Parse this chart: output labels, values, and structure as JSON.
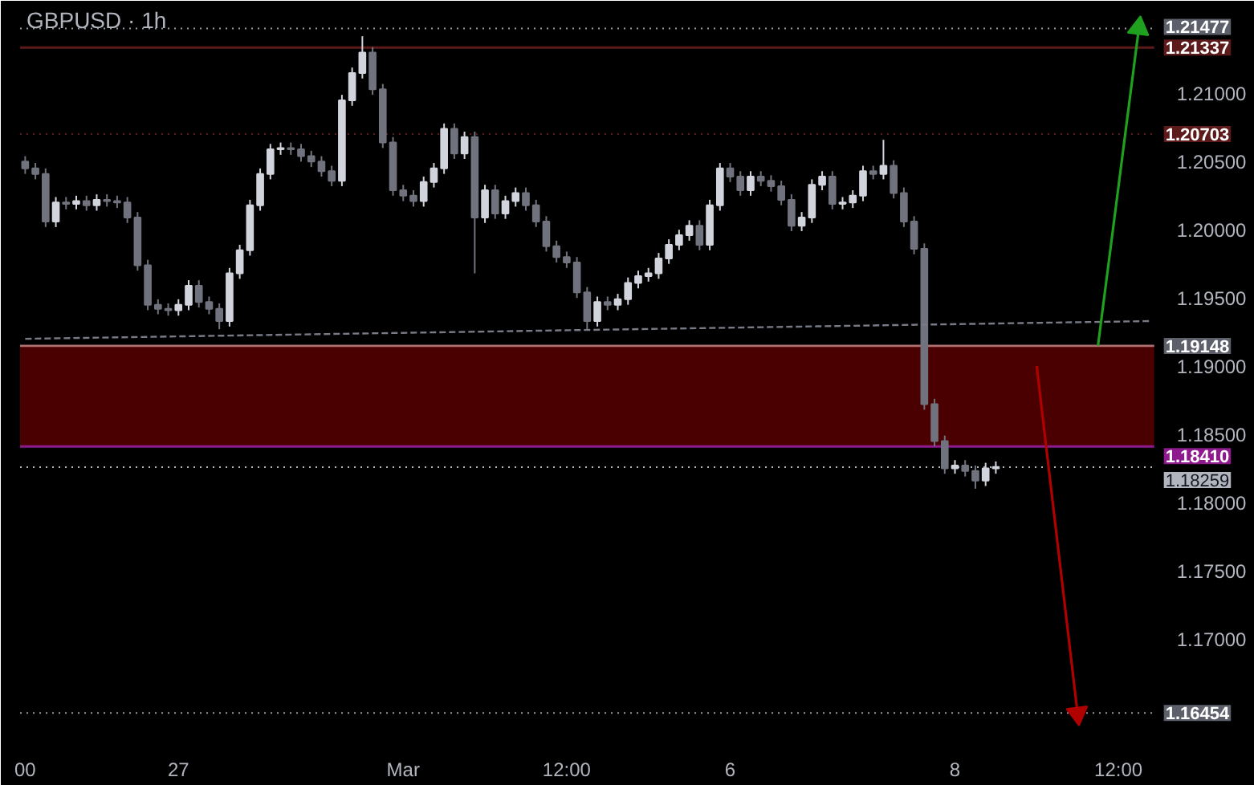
{
  "chart_data": {
    "type": "candlestick",
    "title": "GBPUSD · 1h",
    "categories": [
      "00",
      null,
      null,
      null,
      null,
      null,
      null,
      null,
      null,
      null,
      null,
      null,
      null,
      null,
      null,
      "27",
      null,
      null,
      null,
      null,
      null,
      null,
      null,
      null,
      null,
      null,
      null,
      null,
      null,
      null,
      null,
      null,
      null,
      null,
      null,
      null,
      null,
      "Mar",
      null,
      null,
      null,
      null,
      null,
      null,
      null,
      null,
      null,
      null,
      null,
      null,
      null,
      null,
      null,
      "12:00",
      null,
      null,
      null,
      null,
      null,
      null,
      null,
      null,
      null,
      null,
      null,
      null,
      null,
      null,
      null,
      "6",
      null,
      null,
      null,
      null,
      null,
      null,
      null,
      null,
      null,
      null,
      null,
      null,
      null,
      null,
      null,
      null,
      null,
      null,
      null,
      null,
      null,
      "8",
      null,
      null,
      null,
      null,
      null,
      null,
      null,
      null,
      null,
      null,
      null,
      null,
      null,
      null,
      null,
      "12:00",
      null,
      null,
      null
    ],
    "ohlc": [
      [
        1.205,
        1.2054,
        1.2041,
        1.2045
      ],
      [
        1.2045,
        1.2049,
        1.2037,
        1.2041
      ],
      [
        1.2041,
        1.2045,
        1.2002,
        1.2006
      ],
      [
        1.2006,
        1.2024,
        1.2002,
        1.202
      ],
      [
        1.202,
        1.2024,
        1.2015,
        1.2019
      ],
      [
        1.2019,
        1.2025,
        1.2015,
        1.2021
      ],
      [
        1.2021,
        1.2025,
        1.2014,
        1.2018
      ],
      [
        1.2018,
        1.2026,
        1.2014,
        1.2022
      ],
      [
        1.2022,
        1.2026,
        1.2017,
        1.2021
      ],
      [
        1.2021,
        1.2025,
        1.2016,
        1.202
      ],
      [
        1.202,
        1.2024,
        1.2005,
        1.2009
      ],
      [
        1.2009,
        1.2013,
        1.197,
        1.1974
      ],
      [
        1.1974,
        1.1978,
        1.1941,
        1.1945
      ],
      [
        1.1945,
        1.1949,
        1.1938,
        1.1942
      ],
      [
        1.1942,
        1.1946,
        1.1937,
        1.1941
      ],
      [
        1.1941,
        1.1949,
        1.1937,
        1.1945
      ],
      [
        1.1945,
        1.1963,
        1.1941,
        1.1959
      ],
      [
        1.1959,
        1.1963,
        1.1943,
        1.1947
      ],
      [
        1.1947,
        1.1951,
        1.1938,
        1.1942
      ],
      [
        1.1942,
        1.1946,
        1.1927,
        1.1933
      ],
      [
        1.1933,
        1.1972,
        1.1929,
        1.1968
      ],
      [
        1.1968,
        1.1989,
        1.1964,
        1.1985
      ],
      [
        1.1985,
        1.2022,
        1.1981,
        1.2018
      ],
      [
        1.2018,
        1.2045,
        1.2014,
        1.2041
      ],
      [
        1.2041,
        1.2063,
        1.2037,
        1.2059
      ],
      [
        1.2059,
        1.2064,
        1.2055,
        1.206
      ],
      [
        1.206,
        1.2064,
        1.2055,
        1.2059
      ],
      [
        1.2059,
        1.2063,
        1.205,
        1.2054
      ],
      [
        1.2054,
        1.2058,
        1.2046,
        1.205
      ],
      [
        1.205,
        1.2054,
        1.2039,
        1.2043
      ],
      [
        1.2043,
        1.2047,
        1.2032,
        1.2036
      ],
      [
        1.2036,
        1.2099,
        1.2032,
        1.2095
      ],
      [
        1.2095,
        1.2119,
        1.2091,
        1.2115
      ],
      [
        1.2115,
        1.2142,
        1.2111,
        1.213
      ],
      [
        1.213,
        1.2134,
        1.2099,
        1.2103
      ],
      [
        1.2103,
        1.2107,
        1.206,
        1.2064
      ],
      [
        1.2064,
        1.2068,
        1.2025,
        1.2029
      ],
      [
        1.2029,
        1.2033,
        1.2021,
        1.2025
      ],
      [
        1.2025,
        1.2029,
        1.2017,
        1.2021
      ],
      [
        1.2021,
        1.2039,
        1.2017,
        1.2035
      ],
      [
        1.2035,
        1.2049,
        1.2031,
        1.2045
      ],
      [
        1.2045,
        1.2078,
        1.2041,
        1.2074
      ],
      [
        1.2074,
        1.2078,
        1.2052,
        1.2056
      ],
      [
        1.2056,
        1.2072,
        1.2052,
        1.2068
      ],
      [
        1.2068,
        1.2072,
        1.1968,
        1.2009
      ],
      [
        1.2009,
        1.2033,
        1.2005,
        1.2029
      ],
      [
        1.2029,
        1.2033,
        1.2008,
        1.2012
      ],
      [
        1.2012,
        1.2025,
        1.2008,
        1.2021
      ],
      [
        1.2021,
        1.2031,
        1.2017,
        1.2027
      ],
      [
        1.2027,
        1.2031,
        1.2014,
        1.2018
      ],
      [
        1.2018,
        1.2022,
        1.2002,
        1.2006
      ],
      [
        1.2006,
        1.201,
        1.1984,
        1.1988
      ],
      [
        1.1988,
        1.1992,
        1.1976,
        1.198
      ],
      [
        1.198,
        1.1984,
        1.1972,
        1.1976
      ],
      [
        1.1976,
        1.198,
        1.195,
        1.1954
      ],
      [
        1.1954,
        1.1958,
        1.1927,
        1.1933
      ],
      [
        1.1933,
        1.1951,
        1.1929,
        1.1947
      ],
      [
        1.1947,
        1.1951,
        1.1941,
        1.1945
      ],
      [
        1.1945,
        1.1953,
        1.1941,
        1.1949
      ],
      [
        1.1949,
        1.1965,
        1.1945,
        1.1961
      ],
      [
        1.1961,
        1.197,
        1.1957,
        1.1966
      ],
      [
        1.1966,
        1.1972,
        1.1962,
        1.1968
      ],
      [
        1.1968,
        1.1983,
        1.1964,
        1.1979
      ],
      [
        1.1979,
        1.1993,
        1.1975,
        1.1989
      ],
      [
        1.1989,
        1.2,
        1.1985,
        1.1996
      ],
      [
        1.1996,
        1.2007,
        1.1992,
        1.2003
      ],
      [
        1.2003,
        1.2007,
        1.1985,
        1.1989
      ],
      [
        1.1989,
        1.2022,
        1.1985,
        1.2018
      ],
      [
        1.2018,
        1.2049,
        1.2014,
        1.2045
      ],
      [
        1.2045,
        1.2049,
        1.2035,
        1.2039
      ],
      [
        1.2039,
        1.2043,
        1.2025,
        1.2029
      ],
      [
        1.2029,
        1.2043,
        1.2025,
        1.2039
      ],
      [
        1.2039,
        1.2043,
        1.2032,
        1.2036
      ],
      [
        1.2036,
        1.204,
        1.2028,
        1.2032
      ],
      [
        1.2032,
        1.2036,
        1.2018,
        1.2022
      ],
      [
        1.2022,
        1.2026,
        1.1999,
        1.2003
      ],
      [
        1.2003,
        1.2013,
        1.1999,
        1.2009
      ],
      [
        1.2009,
        1.2037,
        1.2005,
        1.2033
      ],
      [
        1.2033,
        1.2043,
        1.2029,
        1.2039
      ],
      [
        1.2039,
        1.2043,
        1.2015,
        1.2019
      ],
      [
        1.2019,
        1.2024,
        1.2015,
        1.202
      ],
      [
        1.202,
        1.2029,
        1.2016,
        1.2025
      ],
      [
        1.2025,
        1.2047,
        1.2021,
        1.2043
      ],
      [
        1.2043,
        1.2047,
        1.2037,
        1.2041
      ],
      [
        1.2041,
        1.2066,
        1.2037,
        1.2047
      ],
      [
        1.2047,
        1.2051,
        1.2023,
        1.2027
      ],
      [
        1.2027,
        1.2031,
        1.2002,
        1.2006
      ],
      [
        1.2006,
        1.201,
        1.1982,
        1.1986
      ],
      [
        1.1986,
        1.199,
        1.1868,
        1.1872
      ],
      [
        1.1872,
        1.1876,
        1.1841,
        1.1845
      ],
      [
        1.1845,
        1.1849,
        1.1821,
        1.1825
      ],
      [
        1.1825,
        1.1831,
        1.1821,
        1.1827
      ],
      [
        1.1827,
        1.1831,
        1.1819,
        1.1823
      ],
      [
        1.1823,
        1.1827,
        1.181,
        1.1816
      ],
      [
        1.1816,
        1.1829,
        1.1812,
        1.1825
      ],
      [
        1.1825,
        1.183,
        1.1821,
        1.1826
      ],
      null,
      null,
      null,
      null,
      null,
      null,
      null,
      null,
      null,
      null,
      null,
      null,
      null,
      null,
      null
    ],
    "series": [
      {
        "type": "line",
        "color": "#787b86",
        "line_style": "dashed",
        "values": [
          1.192,
          null,
          null,
          null,
          null,
          null,
          null,
          null,
          null,
          null,
          null,
          null,
          null,
          null,
          null,
          null,
          null,
          null,
          null,
          null,
          null,
          null,
          null,
          null,
          null,
          null,
          null,
          null,
          null,
          null,
          null,
          null,
          null,
          null,
          null,
          null,
          null,
          null,
          null,
          null,
          null,
          null,
          null,
          null,
          null,
          null,
          null,
          null,
          null,
          null,
          null,
          null,
          null,
          null,
          null,
          null,
          null,
          null,
          null,
          null,
          null,
          null,
          null,
          null,
          null,
          null,
          null,
          null,
          null,
          null,
          null,
          null,
          null,
          null,
          null,
          null,
          null,
          null,
          null,
          null,
          null,
          null,
          null,
          null,
          null,
          null,
          null,
          null,
          null,
          null,
          null,
          null,
          null,
          null,
          null,
          null,
          null,
          null,
          null,
          null,
          null,
          null,
          null,
          null,
          null,
          null,
          null,
          null,
          null,
          null,
          1.1933
        ]
      },
      {
        "type": "line",
        "color": "#1fa01f",
        "marker": "triangle",
        "values": [
          null,
          null,
          null,
          null,
          null,
          null,
          null,
          null,
          null,
          null,
          null,
          null,
          null,
          null,
          null,
          null,
          null,
          null,
          null,
          null,
          null,
          null,
          null,
          null,
          null,
          null,
          null,
          null,
          null,
          null,
          null,
          null,
          null,
          null,
          null,
          null,
          null,
          null,
          null,
          null,
          null,
          null,
          null,
          null,
          null,
          null,
          null,
          null,
          null,
          null,
          null,
          null,
          null,
          null,
          null,
          null,
          null,
          null,
          null,
          null,
          null,
          null,
          null,
          null,
          null,
          null,
          null,
          null,
          null,
          null,
          null,
          null,
          null,
          null,
          null,
          null,
          null,
          null,
          null,
          null,
          null,
          null,
          null,
          null,
          null,
          null,
          null,
          null,
          null,
          null,
          null,
          null,
          null,
          null,
          null,
          null,
          null,
          null,
          null,
          null,
          null,
          null,
          null,
          null,
          null,
          1.1915,
          null,
          null,
          null,
          1.2148,
          null
        ]
      },
      {
        "type": "line",
        "color": "#b00000",
        "marker": "triangle",
        "values": [
          null,
          null,
          null,
          null,
          null,
          null,
          null,
          null,
          null,
          null,
          null,
          null,
          null,
          null,
          null,
          null,
          null,
          null,
          null,
          null,
          null,
          null,
          null,
          null,
          null,
          null,
          null,
          null,
          null,
          null,
          null,
          null,
          null,
          null,
          null,
          null,
          null,
          null,
          null,
          null,
          null,
          null,
          null,
          null,
          null,
          null,
          null,
          null,
          null,
          null,
          null,
          null,
          null,
          null,
          null,
          null,
          null,
          null,
          null,
          null,
          null,
          null,
          null,
          null,
          null,
          null,
          null,
          null,
          null,
          null,
          null,
          null,
          null,
          null,
          null,
          null,
          null,
          null,
          null,
          null,
          null,
          null,
          null,
          null,
          null,
          null,
          null,
          null,
          null,
          null,
          null,
          null,
          null,
          null,
          null,
          null,
          null,
          null,
          null,
          1.19,
          null,
          null,
          null,
          1.1645,
          null,
          null,
          null,
          null,
          null,
          null,
          null
        ]
      }
    ],
    "ref_lines": [
      {
        "axis": "y",
        "value": 1.21477,
        "label": "1.21477",
        "color": "#9598a1",
        "line_style": "dotted"
      },
      {
        "axis": "y",
        "value": 1.21337,
        "label": "1.21337",
        "color": "#5d1a1a",
        "line_style": "solid"
      },
      {
        "axis": "y",
        "value": 1.20703,
        "label": "1.20703",
        "color": "#5d1a1a",
        "line_style": "dotted"
      },
      {
        "axis": "y",
        "value": 1.19148,
        "label": "1.19148",
        "color": "#b07070",
        "line_style": "solid"
      },
      {
        "axis": "y",
        "value": 1.1841,
        "label": "1.18410",
        "color": "#8e1a8e",
        "line_style": "solid"
      },
      {
        "axis": "y",
        "value": 1.18259,
        "label": "1.18259",
        "color": "#b2b5be",
        "line_style": "dotted"
      },
      {
        "axis": "y",
        "value": 1.16454,
        "label": "1.16454",
        "color": "#9598a1",
        "line_style": "dotted"
      }
    ],
    "bands": [
      {
        "axis": "y",
        "from": 1.1841,
        "to": 1.19148,
        "color": "#4a0000"
      }
    ],
    "ylim": [
      1.1625,
      1.2168
    ],
    "yticks": [
      {
        "value": 1.17,
        "label": "1.17000"
      },
      {
        "value": 1.175,
        "label": "1.17500"
      },
      {
        "value": 1.18,
        "label": "1.18000"
      },
      {
        "value": 1.185,
        "label": "1.18500"
      },
      {
        "value": 1.19,
        "label": "1.19000"
      },
      {
        "value": 1.195,
        "label": "1.19500"
      },
      {
        "value": 1.2,
        "label": "1.20000"
      },
      {
        "value": 1.205,
        "label": "1.20500"
      },
      {
        "value": 1.21,
        "label": "1.21000"
      }
    ],
    "grid": false
  }
}
